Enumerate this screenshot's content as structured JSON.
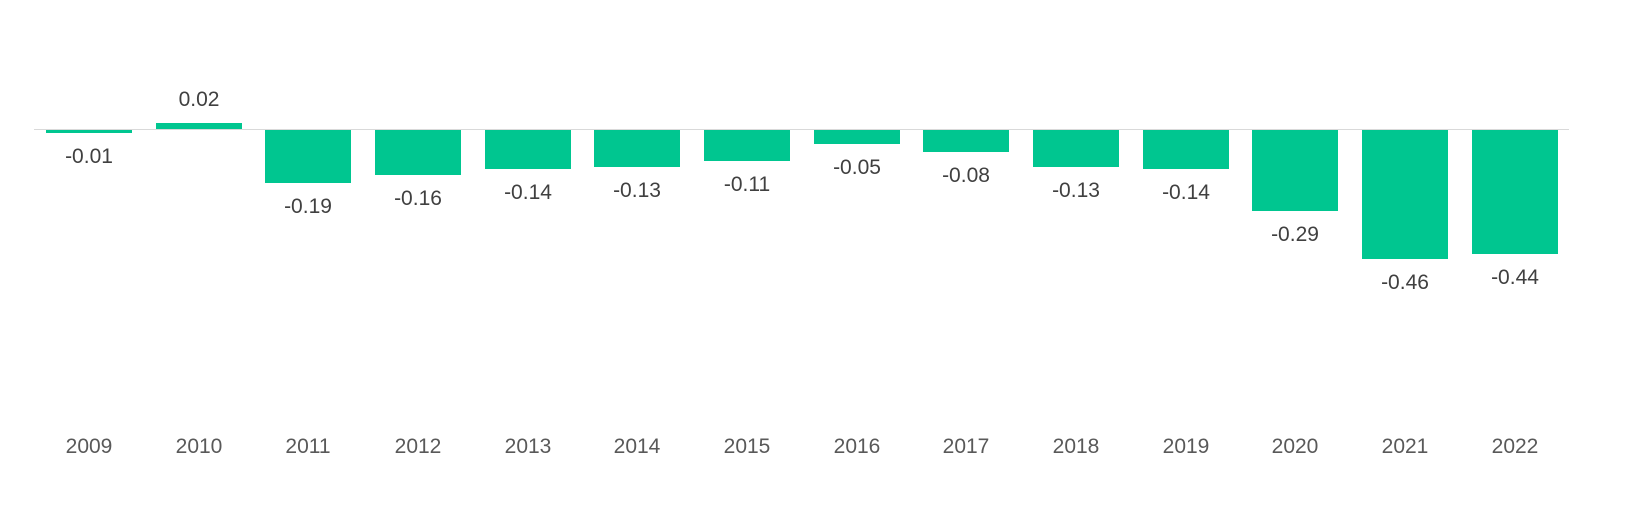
{
  "chart_data": {
    "type": "bar",
    "title": "",
    "xlabel": "",
    "ylabel": "",
    "categories": [
      "2009",
      "2010",
      "2011",
      "2012",
      "2013",
      "2014",
      "2015",
      "2016",
      "2017",
      "2018",
      "2019",
      "2020",
      "2021",
      "2022"
    ],
    "values": [
      -0.01,
      0.02,
      -0.19,
      -0.16,
      -0.14,
      -0.13,
      -0.11,
      -0.05,
      -0.08,
      -0.13,
      -0.14,
      -0.29,
      -0.46,
      -0.44
    ],
    "labels": [
      "-0.01",
      "0.02",
      "-0.19",
      "-0.16",
      "-0.14",
      "-0.13",
      "-0.11",
      "-0.05",
      "-0.08",
      "-0.13",
      "-0.14",
      "-0.29",
      "-0.46",
      "-0.44"
    ],
    "ylim": [
      -0.5,
      0.1
    ],
    "grid": false,
    "legend": false,
    "data_label_position": "outside-end",
    "bar_color": "#00C690",
    "baseline_color": "#D9D9D9",
    "data_label_color": "#404040",
    "axis_label_color": "#595959",
    "background": "#FFFFFF"
  }
}
